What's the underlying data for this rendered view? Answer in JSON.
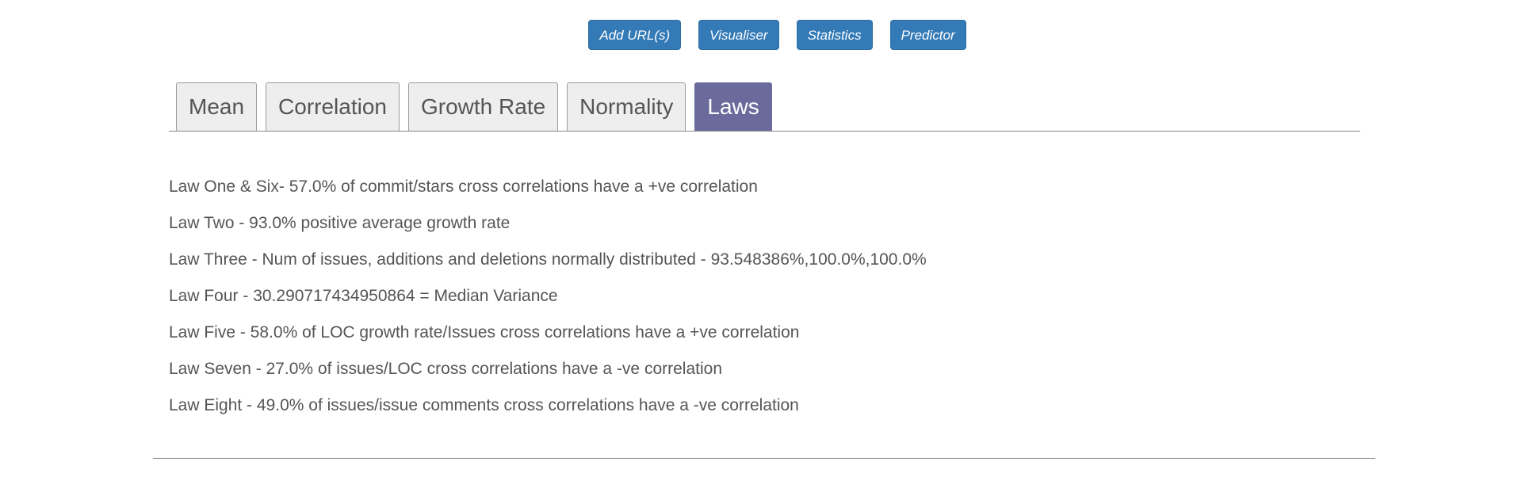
{
  "top_nav": {
    "buttons": [
      {
        "label": "Add URL(s)"
      },
      {
        "label": "Visualiser"
      },
      {
        "label": "Statistics"
      },
      {
        "label": "Predictor"
      }
    ]
  },
  "tabs": [
    {
      "label": "Mean",
      "active": false
    },
    {
      "label": "Correlation",
      "active": false
    },
    {
      "label": "Growth Rate",
      "active": false
    },
    {
      "label": "Normality",
      "active": false
    },
    {
      "label": "Laws",
      "active": true
    }
  ],
  "laws": [
    "Law One & Six- 57.0% of commit/stars cross correlations have a +ve correlation",
    "Law Two - 93.0% positive average growth rate",
    "Law Three - Num of issues, additions and deletions normally distributed - 93.548386%,100.0%,100.0%",
    "Law Four - 30.290717434950864 = Median Variance",
    "Law Five - 58.0% of LOC growth rate/Issues cross correlations have a +ve correlation",
    "Law Seven - 27.0% of issues/LOC cross correlations have a -ve correlation",
    "Law Eight - 49.0% of issues/issue comments cross correlations have a -ve correlation"
  ],
  "colors": {
    "button_bg": "#337ab7",
    "active_tab_bg": "#6a6a9c",
    "inactive_tab_bg": "#eeeeee",
    "text": "#555555"
  }
}
